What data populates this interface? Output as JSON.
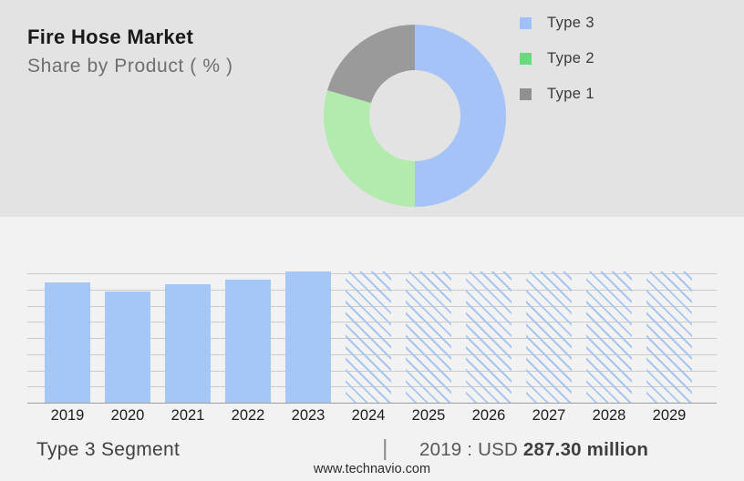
{
  "colors": {
    "top_bg": "#e3e3e3",
    "bottom_bg": "#f2f2f3",
    "accent_blue": "#a5c7f8",
    "accent_green": "#b3eaae",
    "accent_gray": "#9a9a9a"
  },
  "header": {
    "title": "Fire Hose Market",
    "subtitle": "Share by Product ( % )"
  },
  "legend": {
    "items": [
      {
        "label": "Type 3",
        "color": "#9fc1f7"
      },
      {
        "label": "Type 2",
        "color": "#69db7e"
      },
      {
        "label": "Type 1",
        "color": "#909090"
      }
    ]
  },
  "chart_data": [
    {
      "type": "pie",
      "title": "Share by Product ( % )",
      "donut": true,
      "legend_position": "right",
      "slices": [
        {
          "label": "Type 3",
          "value": 50.0,
          "color": "#a5c3f7"
        },
        {
          "label": "Type 2",
          "value": 29.5,
          "color": "#b3eaae"
        },
        {
          "label": "Type 1",
          "value": 20.5,
          "color": "#9a9a9a"
        }
      ],
      "note": "values estimated from arc angles; no % labels shown in image"
    },
    {
      "type": "bar",
      "categories": [
        "2019",
        "2020",
        "2021",
        "2022",
        "2023",
        "2024",
        "2025",
        "2026",
        "2027",
        "2028",
        "2029"
      ],
      "values": [
        287.3,
        264.5,
        282,
        294,
        312,
        312,
        312,
        312,
        312,
        312,
        312
      ],
      "unit": "USD million",
      "forecast_from_index": 5,
      "forecast_bars_full_height": true,
      "bar_color": "#a5c7f8",
      "hatch_color": "#a9c6f3",
      "xlabel": "",
      "ylabel": "",
      "ylim": [
        0,
        314.5
      ],
      "grid": true,
      "note": "only 2019 value (287.30) labeled; others estimated from bar heights; 2024-2029 are hatched forecast bars"
    }
  ],
  "footer": {
    "segment_label": "Type 3 Segment",
    "divider": "|",
    "stat_prefix": "2019 : USD ",
    "stat_value": "287.30 million",
    "website": "www.technavio.com"
  }
}
